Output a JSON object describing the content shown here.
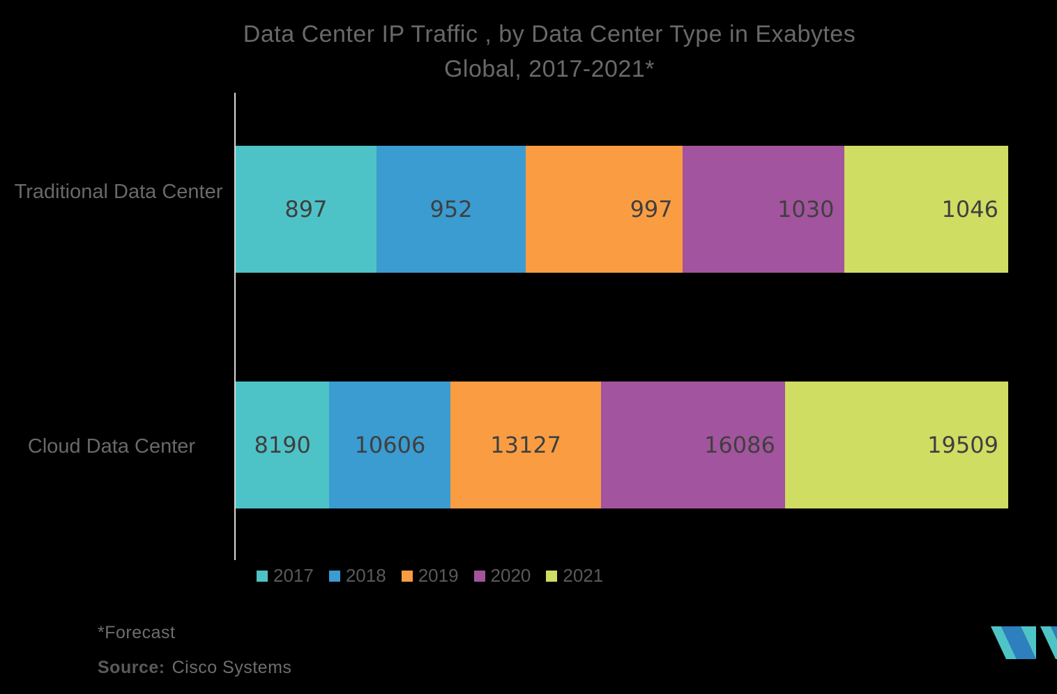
{
  "title": {
    "line1": "Data Center IP Traffic , by Data Center Type in Exabytes",
    "line2": "Global, 2017-2021*"
  },
  "chart_data": {
    "type": "bar",
    "orientation": "horizontal",
    "stacked": true,
    "unit": "Exabytes",
    "title": "Data Center IP Traffic , by Data Center Type in Exabytes Global, 2017-2021*",
    "categories": [
      "Traditional Data Center",
      "Cloud Data Center"
    ],
    "series": [
      {
        "name": "2017",
        "color": "#4EC3C7",
        "values": [
          897,
          8190
        ]
      },
      {
        "name": "2018",
        "color": "#3A9CD1",
        "values": [
          952,
          10606
        ]
      },
      {
        "name": "2019",
        "color": "#FA9D42",
        "values": [
          997,
          13127
        ]
      },
      {
        "name": "2020",
        "color": "#A3549E",
        "values": [
          1030,
          16086
        ]
      },
      {
        "name": "2021",
        "color": "#CFDD63",
        "values": [
          1046,
          19509
        ]
      }
    ],
    "data_labels": true,
    "legend_position": "bottom",
    "grid": false,
    "label_align": [
      [
        "center",
        "center",
        "end",
        "end",
        "end"
      ],
      [
        "center",
        "center",
        "center",
        "end",
        "end"
      ]
    ]
  },
  "footer": {
    "forecast_note": "*Forecast",
    "source_label": "Source:",
    "source_value": "Cisco Systems"
  },
  "logo": {
    "name": "mordor-intelligence-logo",
    "teal": "#4EC4C6",
    "blue": "#2E7FBE"
  },
  "colors": {
    "background": "#000000",
    "axis_line": "#D9D9D9",
    "title_text": "#696969",
    "value_label_text": "#3F3F3F",
    "legend_text": "#5A5A5A"
  }
}
